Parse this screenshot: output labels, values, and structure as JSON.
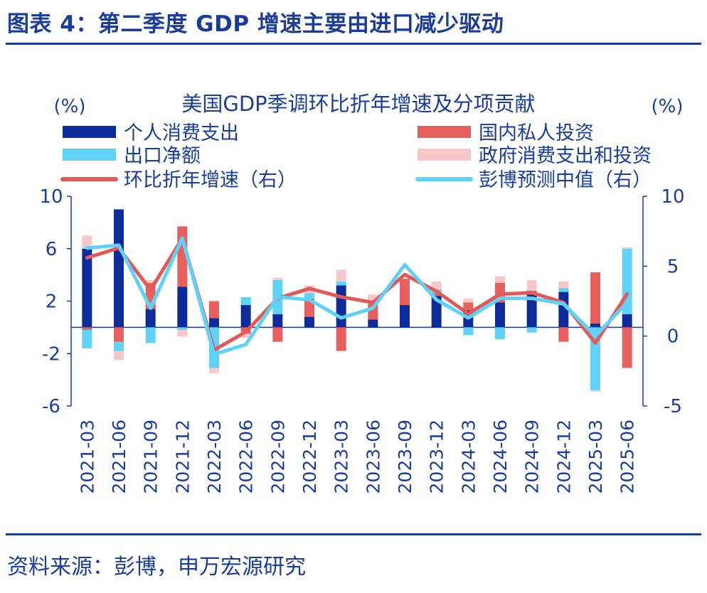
{
  "figure_title": "图表 4：第二季度 GDP 增速主要由进口减少驱动",
  "source": "资料来源：彭博，申万宏源研究",
  "colors": {
    "personal": "#0d2b9b",
    "private_investment": "#e8605e",
    "net_exports": "#5fd3f7",
    "government": "#f7c8c9",
    "growth_line": "#e25a57",
    "consensus_line": "#5fd3f7",
    "axis": "#1a3d9c"
  },
  "chart_data": {
    "type": "bar",
    "title": "美国GDP季调环比折年增速及分项贡献",
    "left_unit": "(%)",
    "right_unit": "(%)",
    "y_left": {
      "lim": [
        -6,
        10
      ],
      "ticks": [
        -6,
        -2,
        2,
        6,
        10
      ]
    },
    "y_right": {
      "lim": [
        -5,
        10
      ],
      "ticks": [
        -5,
        0,
        5,
        10
      ]
    },
    "categories": [
      "2021-03",
      "2021-06",
      "2021-09",
      "2021-12",
      "2022-03",
      "2022-06",
      "2022-09",
      "2022-12",
      "2023-03",
      "2023-06",
      "2023-09",
      "2023-12",
      "2024-03",
      "2024-06",
      "2024-09",
      "2024-12",
      "2025-03",
      "2025-06"
    ],
    "legend_placement": "top",
    "series": [
      {
        "name": "个人消费支出",
        "kind": "bar",
        "axis": "left",
        "values": [
          6.0,
          9.0,
          1.4,
          3.1,
          0.7,
          1.7,
          1.0,
          0.8,
          3.2,
          0.6,
          1.7,
          2.4,
          1.3,
          1.9,
          2.5,
          2.7,
          0.3,
          1.0
        ]
      },
      {
        "name": "国内私人投资",
        "kind": "bar",
        "axis": "left",
        "values": [
          -0.2,
          -1.1,
          2.0,
          4.6,
          1.3,
          -0.5,
          -1.1,
          1.4,
          -1.8,
          1.3,
          2.0,
          0.2,
          0.6,
          1.5,
          0.3,
          -1.1,
          3.9,
          -3.1
        ]
      },
      {
        "name": "出口净额",
        "kind": "bar",
        "axis": "left",
        "values": [
          -1.4,
          -0.7,
          -1.2,
          -0.2,
          -3.1,
          0.6,
          2.6,
          0.4,
          0.3,
          0.0,
          0.0,
          0.3,
          -0.6,
          -0.9,
          -0.4,
          0.3,
          -4.8,
          5.0
        ]
      },
      {
        "name": "政府消费支出和投资",
        "kind": "bar",
        "axis": "left",
        "values": [
          1.0,
          -0.7,
          0.2,
          -0.5,
          -0.4,
          -0.3,
          0.2,
          0.6,
          0.9,
          0.6,
          0.0,
          0.6,
          0.3,
          0.5,
          0.8,
          0.5,
          -0.1,
          0.1
        ]
      },
      {
        "name": "环比折年增速（右）",
        "kind": "line",
        "axis": "right",
        "values": [
          5.6,
          6.3,
          3.3,
          7.0,
          -1.0,
          0.3,
          2.7,
          3.4,
          2.8,
          2.4,
          4.4,
          3.2,
          1.6,
          3.0,
          3.1,
          2.4,
          -0.5,
          3.0
        ]
      },
      {
        "name": "彭博预测中值（右）",
        "kind": "line",
        "axis": "right",
        "values": [
          6.3,
          6.5,
          2.0,
          7.0,
          -1.3,
          -0.6,
          2.8,
          2.6,
          1.3,
          2.0,
          5.1,
          2.6,
          1.3,
          2.7,
          2.7,
          2.3,
          0.0,
          2.4
        ]
      }
    ]
  }
}
